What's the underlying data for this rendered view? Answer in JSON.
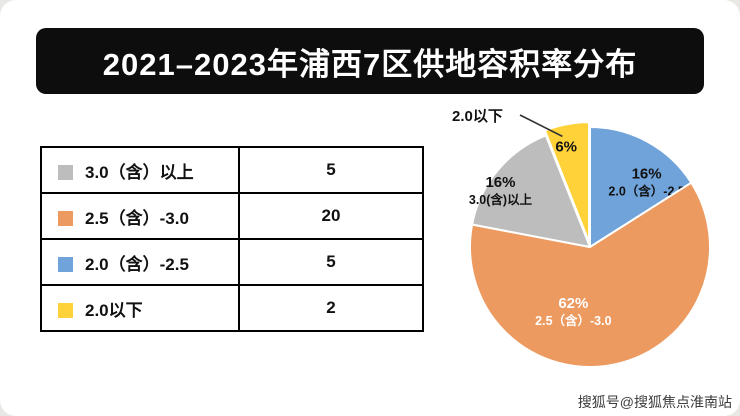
{
  "title": "2021–2023年浦西7区供地容积率分布",
  "watermark": "搜狐号@搜狐焦点淮南站",
  "colors": {
    "title_bg": "#0d0d0d",
    "gray": "#BDBDBD",
    "orange": "#EC9A5F",
    "blue": "#6FA3D9",
    "yellow": "#FFD23A"
  },
  "table": {
    "rows": [
      {
        "label": "3.0（含）以上",
        "value": "5",
        "color": "#BDBDBD"
      },
      {
        "label": "2.5（含）-3.0",
        "value": "20",
        "color": "#EC9A5F"
      },
      {
        "label": "2.0（含）-2.5",
        "value": "5",
        "color": "#6FA3D9"
      },
      {
        "label": "2.0以下",
        "value": "2",
        "color": "#FFD23A"
      }
    ]
  },
  "chart_data": {
    "type": "pie",
    "title": "2021–2023年浦西7区供地容积率分布",
    "start_angle_deg": -21.6,
    "legend_position": "left-table",
    "slices": [
      {
        "label": "2.0以下",
        "pct": 6,
        "count": 2,
        "color": "#FFD23A",
        "text_color": "#111111",
        "callout": true,
        "explode": true
      },
      {
        "label": "2.0（含）-2.5",
        "pct": 16,
        "count": 5,
        "color": "#6FA3D9",
        "text_color": "#111111"
      },
      {
        "label": "2.5（含）-3.0",
        "pct": 62,
        "count": 20,
        "color": "#EC9A5F",
        "text_color": "#FFFFFF"
      },
      {
        "label": "3.0(含)以上",
        "pct": 16,
        "count": 5,
        "color": "#BDBDBD",
        "text_color": "#111111"
      }
    ]
  }
}
